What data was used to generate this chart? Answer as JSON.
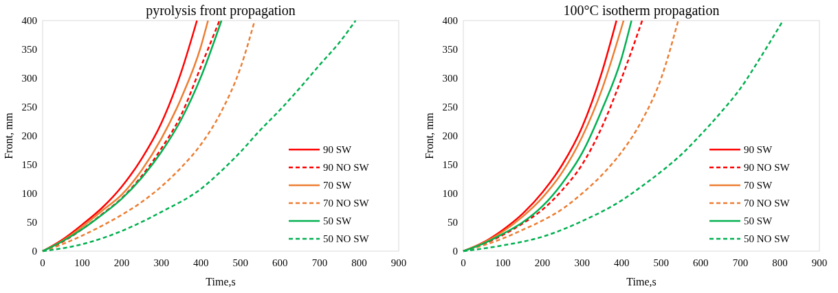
{
  "chart_data": [
    {
      "type": "line",
      "title": "pyrolysis front propagation",
      "xlabel": "Time,s",
      "ylabel": "Front,  mm",
      "xlim": [
        0,
        900
      ],
      "ylim": [
        0,
        400
      ],
      "xticks": [
        0,
        100,
        200,
        300,
        400,
        500,
        600,
        700,
        800,
        900
      ],
      "yticks": [
        0,
        50,
        100,
        150,
        200,
        250,
        300,
        350,
        400
      ],
      "grid": false,
      "legend": "bottom right",
      "series": [
        {
          "name": "90 SW",
          "color": "#ff0000",
          "line_style": "solid",
          "x": [
            0,
            50,
            100,
            150,
            200,
            250,
            300,
            350,
            390
          ],
          "values": [
            0,
            20,
            46,
            75,
            112,
            160,
            222,
            310,
            400
          ]
        },
        {
          "name": "90 NO SW",
          "color": "#ff0000",
          "line_style": "dashed",
          "x": [
            0,
            50,
            100,
            150,
            200,
            250,
            300,
            350,
            400,
            447
          ],
          "values": [
            0,
            16,
            38,
            64,
            92,
            130,
            178,
            236,
            320,
            400
          ]
        },
        {
          "name": "70 SW",
          "color": "#ed7d31",
          "line_style": "solid",
          "x": [
            0,
            50,
            100,
            150,
            200,
            250,
            300,
            350,
            400,
            418
          ],
          "values": [
            0,
            18,
            42,
            70,
            98,
            140,
            195,
            265,
            355,
            400
          ]
        },
        {
          "name": "70 NO SW",
          "color": "#ed7d31",
          "line_style": "dashed",
          "x": [
            0,
            50,
            100,
            150,
            200,
            250,
            300,
            350,
            400,
            450,
            500,
            536
          ],
          "values": [
            0,
            12,
            27,
            44,
            63,
            85,
            112,
            145,
            185,
            240,
            318,
            400
          ]
        },
        {
          "name": "50 SW",
          "color": "#00b050",
          "line_style": "solid",
          "x": [
            0,
            50,
            100,
            150,
            200,
            250,
            300,
            350,
            400,
            452
          ],
          "values": [
            0,
            17,
            38,
            63,
            91,
            127,
            172,
            228,
            302,
            400
          ]
        },
        {
          "name": "50 NO SW",
          "color": "#00b050",
          "line_style": "dashed",
          "x": [
            0,
            100,
            200,
            300,
            400,
            450,
            500,
            550,
            600,
            650,
            700,
            750,
            791
          ],
          "values": [
            0,
            12,
            35,
            68,
            108,
            138,
            172,
            210,
            245,
            283,
            323,
            362,
            400
          ]
        }
      ]
    },
    {
      "type": "line",
      "title": "100°C isotherm propagation",
      "xlabel": "Time,s",
      "ylabel": "Front,  mm",
      "xlim": [
        0,
        900
      ],
      "ylim": [
        0,
        400
      ],
      "xticks": [
        0,
        100,
        200,
        300,
        400,
        500,
        600,
        700,
        800,
        900
      ],
      "yticks": [
        0,
        50,
        100,
        150,
        200,
        250,
        300,
        350,
        400
      ],
      "grid": false,
      "legend": "bottom right",
      "series": [
        {
          "name": "90 SW",
          "color": "#ff0000",
          "line_style": "solid",
          "x": [
            0,
            50,
            100,
            150,
            200,
            250,
            300,
            350,
            387
          ],
          "values": [
            0,
            15,
            37,
            65,
            102,
            150,
            215,
            310,
            400
          ]
        },
        {
          "name": "90 NO SW",
          "color": "#ff0000",
          "line_style": "dashed",
          "x": [
            0,
            50,
            100,
            150,
            200,
            250,
            300,
            350,
            400,
            452
          ],
          "values": [
            0,
            12,
            28,
            48,
            72,
            106,
            150,
            215,
            300,
            400
          ]
        },
        {
          "name": "70 SW",
          "color": "#ed7d31",
          "line_style": "solid",
          "x": [
            0,
            50,
            100,
            150,
            200,
            250,
            300,
            350,
            405
          ],
          "values": [
            0,
            14,
            34,
            60,
            93,
            137,
            198,
            280,
            400
          ]
        },
        {
          "name": "70 NO SW",
          "color": "#ed7d31",
          "line_style": "dashed",
          "x": [
            0,
            50,
            100,
            150,
            200,
            250,
            300,
            350,
            400,
            450,
            500,
            543
          ],
          "values": [
            0,
            10,
            22,
            37,
            53,
            73,
            100,
            132,
            172,
            225,
            300,
            400
          ]
        },
        {
          "name": "50 SW",
          "color": "#00b050",
          "line_style": "solid",
          "x": [
            0,
            50,
            100,
            150,
            200,
            250,
            300,
            350,
            400,
            425
          ],
          "values": [
            0,
            13,
            30,
            50,
            78,
            118,
            170,
            245,
            335,
            400
          ]
        },
        {
          "name": "50 NO SW",
          "color": "#00b050",
          "line_style": "dashed",
          "x": [
            0,
            100,
            200,
            300,
            400,
            450,
            500,
            550,
            600,
            650,
            700,
            750,
            808
          ],
          "values": [
            0,
            10,
            25,
            52,
            88,
            112,
            138,
            167,
            202,
            240,
            282,
            335,
            400
          ]
        }
      ]
    }
  ]
}
